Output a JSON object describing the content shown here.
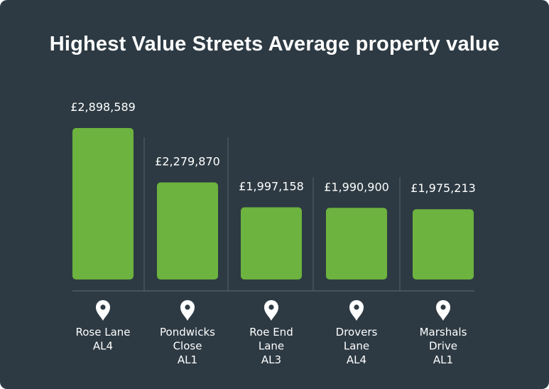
{
  "chart_data": {
    "type": "bar",
    "title": "Highest Value Streets Average property value",
    "categories": [
      {
        "lines": [
          "Rose Lane",
          "AL4"
        ]
      },
      {
        "lines": [
          "Pondwicks",
          "Close",
          "AL1"
        ]
      },
      {
        "lines": [
          "Roe End",
          "Lane",
          "AL3"
        ]
      },
      {
        "lines": [
          "Drovers",
          "Lane",
          "AL4"
        ]
      },
      {
        "lines": [
          "Marshals",
          "Drive",
          "AL1"
        ]
      }
    ],
    "values": [
      2898589,
      2279870,
      1997158,
      1990900,
      1975213
    ],
    "value_labels": [
      "£2,898,589",
      "£2,279,870",
      "£1,997,158",
      "£1,990,900",
      "£1,975,213"
    ],
    "icon": "map-pin-icon",
    "colors": {
      "background": "#2d3a43",
      "bar": "#6db33f",
      "text": "#ffffff",
      "divider": "#4d5c66"
    }
  }
}
